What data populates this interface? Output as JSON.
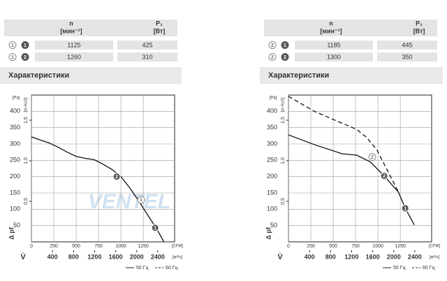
{
  "panels": [
    {
      "table": {
        "header": {
          "n": "n",
          "n_unit": "[мин⁻¹]",
          "p": "P₁",
          "p_unit": "[Вт]"
        },
        "rows": [
          {
            "curve": "1",
            "point": "1",
            "n": 1125,
            "p": 425
          },
          {
            "curve": "1",
            "point": "2",
            "n": 1260,
            "p": 310
          }
        ]
      },
      "heading": "Характеристики"
    },
    {
      "table": {
        "header": {
          "n": "n",
          "n_unit": "[мин⁻¹]",
          "p": "P₁",
          "p_unit": "[Вт]"
        },
        "rows": [
          {
            "curve": "2",
            "point": "1",
            "n": 1185,
            "p": 445
          },
          {
            "curve": "2",
            "point": "2",
            "n": 1300,
            "p": 350
          }
        ]
      },
      "heading": "Характеристики"
    }
  ],
  "chart_data": [
    {
      "type": "line",
      "watermark": "VENTEL",
      "ylabel": "Δ pf",
      "xlabel": "V̇",
      "xunit": "[CFM]",
      "yunit": "[Pa]",
      "y2unit": "[in H₂O]",
      "x2unit": "[м³/ч]",
      "xlim": [
        0,
        1600
      ],
      "xticks": [
        0,
        250,
        500,
        750,
        1000,
        1250
      ],
      "ylim": [
        0,
        450
      ],
      "yticks": [
        50,
        100,
        150,
        200,
        250,
        300,
        350,
        400
      ],
      "y2lim": [
        0,
        1.81
      ],
      "y2ticks": [
        {
          "value": 0.5,
          "label": "0,5"
        },
        {
          "value": 1,
          "label": "1,0"
        },
        {
          "value": 1.5,
          "label": "1,5"
        }
      ],
      "x2lim": [
        0,
        2720
      ],
      "x2ticks": [
        400,
        800,
        1200,
        1600,
        2000,
        2400
      ],
      "grid": true,
      "series": [
        {
          "style": "solid",
          "color": "#111",
          "x": [
            0,
            100,
            200,
            300,
            400,
            500,
            600,
            700,
            800,
            900,
            1000,
            1100,
            1200,
            1300,
            1400,
            1480
          ],
          "values": [
            322,
            312,
            303,
            290,
            275,
            262,
            256,
            252,
            238,
            222,
            200,
            165,
            125,
            82,
            40,
            0
          ]
        }
      ],
      "points": [
        {
          "label": "2",
          "x": 953,
          "y": 200,
          "filled": true
        },
        {
          "label": "1",
          "x": 1383,
          "y": 43,
          "filled": true
        },
        {
          "label": "1",
          "x": 1226,
          "y": 129,
          "filled": false
        }
      ],
      "legend": [
        {
          "name": "50 Гц",
          "dashed": false
        },
        {
          "name": "60 Гц",
          "dashed": true
        }
      ]
    },
    {
      "type": "line",
      "ylabel": "Δ pf",
      "xlabel": "V̇",
      "xunit": "[CFM]",
      "yunit": "[Pa]",
      "y2unit": "[in H₂O]",
      "x2unit": "[м³/ч]",
      "xlim": [
        0,
        1600
      ],
      "xticks": [
        0,
        250,
        500,
        750,
        1000,
        1250
      ],
      "ylim": [
        0,
        450
      ],
      "yticks": [
        50,
        100,
        150,
        200,
        250,
        300,
        350,
        400
      ],
      "y2lim": [
        0,
        1.81
      ],
      "y2ticks": [
        {
          "value": 0.5,
          "label": "0,5"
        },
        {
          "value": 1,
          "label": "1,0"
        },
        {
          "value": 1.5,
          "label": "1,5"
        }
      ],
      "x2lim": [
        0,
        2720
      ],
      "x2ticks": [
        400,
        800,
        1200,
        1600,
        2000,
        2400
      ],
      "grid": true,
      "series": [
        {
          "style": "solid",
          "color": "#111",
          "x": [
            0,
            290,
            600,
            760,
            915,
            1070,
            1230,
            1305,
            1406
          ],
          "values": [
            328,
            298,
            270,
            266,
            245,
            202,
            152,
            103,
            52
          ]
        },
        {
          "style": "dashed",
          "color": "#111",
          "x": [
            0,
            290,
            520,
            760,
            875,
            990,
            1110,
            1230
          ],
          "values": [
            446,
            400,
            373,
            345,
            320,
            281,
            217,
            152
          ]
        }
      ],
      "points": [
        {
          "label": "2",
          "x": 1070,
          "y": 202,
          "filled": true
        },
        {
          "label": "1",
          "x": 1305,
          "y": 103,
          "filled": true
        },
        {
          "label": "2",
          "x": 937,
          "y": 260,
          "filled": false
        }
      ],
      "legend": [
        {
          "name": "50 Гц",
          "dashed": false
        },
        {
          "name": "60 Гц",
          "dashed": true
        }
      ]
    }
  ]
}
